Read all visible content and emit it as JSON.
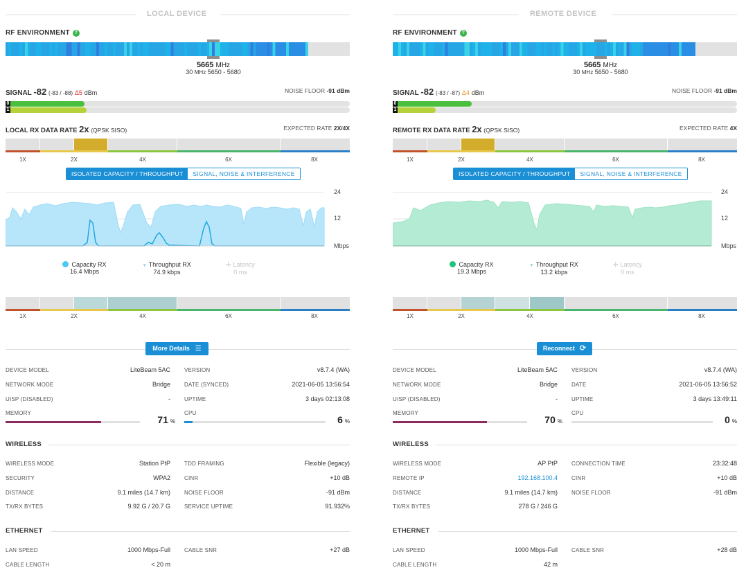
{
  "local": {
    "title": "LOCAL DEVICE",
    "rf_label": "RF ENVIRONMENT",
    "freq": "5665",
    "freq_unit": "MHz",
    "width": "30",
    "width_unit": "MHz",
    "range": "5650 - 5680",
    "signal_label": "SIGNAL",
    "signal_value": "-82",
    "signal_chains": "(-83 / -88)",
    "signal_delta": "Δ5",
    "signal_unit": "dBm",
    "noise_label": "NOISE FLOOR",
    "noise_value": "-91 dBm",
    "chain0_label": "0",
    "chain1_label": "1",
    "chain0_fraction": 0.23,
    "chain1_fraction": 0.235,
    "rate_label": "LOCAL RX DATA RATE",
    "rate_value": "2x",
    "rate_mod": "(QPSK SISO)",
    "expected_label": "EXPECTED RATE",
    "expected_value": "2X/4X",
    "rate_ticks": [
      "1X",
      "2X",
      "4X",
      "6X",
      "8X"
    ],
    "tabs": [
      "ISOLATED CAPACITY / THROUGHPUT",
      "SIGNAL, NOISE & INTERFERENCE"
    ],
    "y_ticks": [
      "24",
      "12",
      "Mbps"
    ],
    "legend": [
      {
        "name": "Capacity RX",
        "value": "16.4 Mbps",
        "color": "#4cc8f2"
      },
      {
        "name": "Throughput RX",
        "value": "74.9 kbps",
        "color": "#1aa3dd"
      },
      {
        "name": "Latency",
        "value": "0 ms",
        "color": "#c8c8c8"
      }
    ],
    "button": "More Details",
    "button_icon": "list-icon",
    "info_left": [
      {
        "label": "DEVICE MODEL",
        "value": "LiteBeam 5AC"
      },
      {
        "label": "NETWORK MODE",
        "value": "Bridge"
      },
      {
        "label": "UISP (DISABLED)",
        "value": "-"
      }
    ],
    "info_right": [
      {
        "label": "VERSION",
        "value": "v8.7.4 (WA)"
      },
      {
        "label": "DATE (SYNCED)",
        "value": "2021-06-05 13:56:54"
      },
      {
        "label": "UPTIME",
        "value": "3 days 02:13:08"
      }
    ],
    "memory_label": "MEMORY",
    "memory_value": "71",
    "memory_fraction": 0.71,
    "cpu_label": "CPU",
    "cpu_value": "6",
    "cpu_fraction": 0.06,
    "pct_sign": "%",
    "wireless_title": "WIRELESS",
    "wireless_left": [
      {
        "label": "WIRELESS MODE",
        "value": "Station PtP"
      },
      {
        "label": "SECURITY",
        "value": "WPA2"
      },
      {
        "label": "DISTANCE",
        "value": "9.1 miles (14.7 km)"
      },
      {
        "label": "TX/RX BYTES",
        "value": "9.92 G / 20.7 G"
      }
    ],
    "wireless_right": [
      {
        "label": "TDD FRAMING",
        "value": "Flexible (legacy)"
      },
      {
        "label": "CINR",
        "value": "+10 dB"
      },
      {
        "label": "NOISE FLOOR",
        "value": "-91 dBm"
      },
      {
        "label": "SERVICE UPTIME",
        "value": "91.932%"
      }
    ],
    "ethernet_title": "ETHERNET",
    "ethernet_left": [
      {
        "label": "LAN SPEED",
        "value": "1000 Mbps-Full"
      },
      {
        "label": "CABLE LENGTH",
        "value": "< 20 m"
      }
    ],
    "ethernet_right": [
      {
        "label": "CABLE SNR",
        "value": "+27 dB"
      }
    ]
  },
  "remote": {
    "title": "REMOTE DEVICE",
    "rf_label": "RF ENVIRONMENT",
    "freq": "5665",
    "freq_unit": "MHz",
    "width": "30",
    "width_unit": "MHz",
    "range": "5650 - 5680",
    "signal_label": "SIGNAL",
    "signal_value": "-82",
    "signal_chains": "(-83 / -87)",
    "signal_delta": "Δ4",
    "signal_unit": "dBm",
    "noise_label": "NOISE FLOOR",
    "noise_value": "-91 dBm",
    "chain0_label": "0",
    "chain1_label": "1",
    "chain0_fraction": 0.23,
    "chain1_fraction": 0.125,
    "rate_label": "REMOTE RX DATA RATE",
    "rate_value": "2x",
    "rate_mod": "(QPSK SISO)",
    "expected_label": "EXPECTED RATE",
    "expected_value": "4X",
    "rate_ticks": [
      "1X",
      "2X",
      "4X",
      "6X",
      "8X"
    ],
    "tabs": [
      "ISOLATED CAPACITY / THROUGHPUT",
      "SIGNAL, NOISE & INTERFERENCE"
    ],
    "y_ticks": [
      "24",
      "12",
      "Mbps"
    ],
    "legend": [
      {
        "name": "Capacity RX",
        "value": "19.3 Mbps",
        "color": "#2ecc8f"
      },
      {
        "name": "Throughput RX",
        "value": "13.2 kbps",
        "color": "#20b07a"
      },
      {
        "name": "Latency",
        "value": "0 ms",
        "color": "#c8c8c8"
      }
    ],
    "button": "Reconnect",
    "button_icon": "refresh-icon",
    "info_left": [
      {
        "label": "DEVICE MODEL",
        "value": "LiteBeam 5AC"
      },
      {
        "label": "NETWORK MODE",
        "value": "Bridge"
      },
      {
        "label": "UISP (DISABLED)",
        "value": "-"
      }
    ],
    "info_right": [
      {
        "label": "VERSION",
        "value": "v8.7.4 (WA)"
      },
      {
        "label": "DATE",
        "value": "2021-06-05 13:56:52"
      },
      {
        "label": "UPTIME",
        "value": "3 days 13:49:11"
      }
    ],
    "memory_label": "MEMORY",
    "memory_value": "70",
    "memory_fraction": 0.7,
    "cpu_label": "CPU",
    "cpu_value": "0",
    "cpu_fraction": 0.0,
    "pct_sign": "%",
    "wireless_title": "WIRELESS",
    "wireless_left": [
      {
        "label": "WIRELESS MODE",
        "value": "AP PtP"
      },
      {
        "label": "REMOTE IP",
        "value": "192.168.100.4"
      },
      {
        "label": "DISTANCE",
        "value": "9.1 miles (14.7 km)"
      },
      {
        "label": "TX/RX BYTES",
        "value": "278 G / 246 G"
      }
    ],
    "wireless_right": [
      {
        "label": "CONNECTION TIME",
        "value": "23:32:48"
      },
      {
        "label": "CINR",
        "value": "+10 dB"
      },
      {
        "label": "NOISE FLOOR",
        "value": "-91 dBm"
      }
    ],
    "ethernet_title": "ETHERNET",
    "ethernet_left": [
      {
        "label": "LAN SPEED",
        "value": "1000 Mbps-Full"
      },
      {
        "label": "CABLE LENGTH",
        "value": "42 m"
      }
    ],
    "ethernet_right": [
      {
        "label": "CABLE SNR",
        "value": "+28 dB"
      }
    ]
  },
  "colors": {
    "accent": "#1a8fd6",
    "signal_green": "#4cbf3f",
    "signal_lime": "#b6d23a",
    "delta_red": "#e0312d",
    "delta_orange": "#f0962a",
    "memory": "#8a2a5e",
    "cpu": "#1a8fd6"
  }
}
